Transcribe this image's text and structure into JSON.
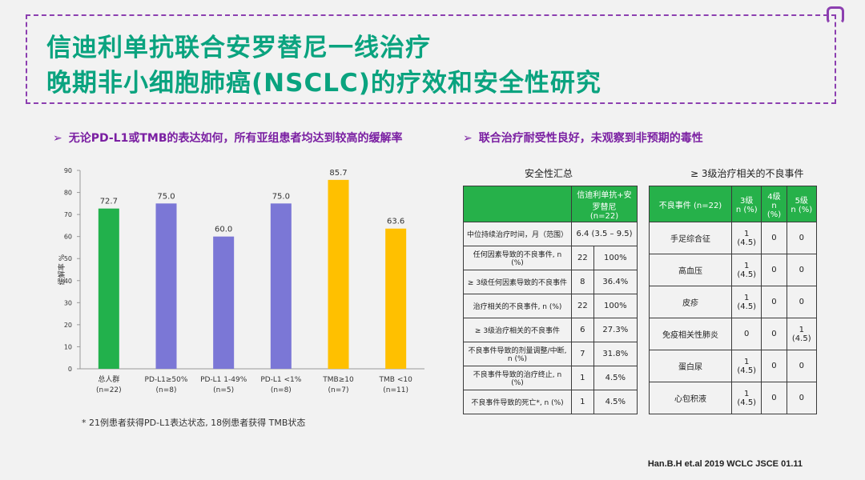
{
  "header": {
    "title_line1": "信迪利单抗联合安罗替尼一线治疗",
    "title_line2": "晚期非小细胞肺癌(NSCLC)的疗效和安全性研究"
  },
  "bullets": {
    "left": "无论PD-L1或TMB的表达如何，所有亚组患者均达到较高的缓解率",
    "right": "联合治疗耐受性良好，未观察到非预期的毒性",
    "marker": "➢"
  },
  "chart_data": {
    "type": "bar",
    "ylabel": "缓解率 %",
    "ylim": [
      0,
      90
    ],
    "yticks": [
      0,
      10,
      20,
      30,
      40,
      50,
      60,
      70,
      80,
      90
    ],
    "categories": [
      [
        "总人群",
        "(n=22)"
      ],
      [
        "PD-L1≥50%",
        "(n=8)"
      ],
      [
        "PD-L1 1-49%",
        "(n=5)"
      ],
      [
        "PD-L1 <1%",
        "(n=8)"
      ],
      [
        "TMB≥10",
        "(n=7)"
      ],
      [
        "TMB <10",
        "(n=11)"
      ]
    ],
    "values": [
      72.7,
      75.0,
      60.0,
      75.0,
      85.7,
      63.6
    ],
    "value_labels": [
      "72.7",
      "75.0",
      "60.0",
      "75.0",
      "85.7",
      "63.6"
    ],
    "colors": [
      "#22b14c",
      "#7b77d6",
      "#7b77d6",
      "#7b77d6",
      "#ffc000",
      "#ffc000"
    ],
    "grid": false
  },
  "footnote": "* 21例患者获得PD-L1表达状态, 18例患者获得 TMB状态",
  "safety_table": {
    "caption": "安全性汇总",
    "header": [
      "",
      "信迪利单抗+安罗替尼\n(n=22)"
    ],
    "rows": [
      [
        "中位持续治疗时间，月（范围）",
        "6.4 (3.5 – 9.5)",
        null
      ],
      [
        "任何因素导致的不良事件, n (%)",
        "22",
        "100%"
      ],
      [
        "≥ 3级任何因素导致的不良事件",
        "8",
        "36.4%"
      ],
      [
        "治疗相关的不良事件, n (%)",
        "22",
        "100%"
      ],
      [
        "≥ 3级治疗相关的不良事件",
        "6",
        "27.3%"
      ],
      [
        "不良事件导致的剂量调整/中断, n (%)",
        "7",
        "31.8%"
      ],
      [
        "不良事件导致的治疗终止, n (%)",
        "1",
        "4.5%"
      ],
      [
        "不良事件导致的死亡*, n (%)",
        "1",
        "4.5%"
      ]
    ]
  },
  "ae_table": {
    "caption": "≥ 3级治疗相关的不良事件",
    "header": [
      "不良事件 (n=22)",
      "3级\nn (%)",
      "4级\nn (%)",
      "5级\nn (%)"
    ],
    "rows": [
      [
        "手足综合征",
        "1 (4.5)",
        "0",
        "0"
      ],
      [
        "高血压",
        "1 (4.5)",
        "0",
        "0"
      ],
      [
        "皮疹",
        "1 (4.5)",
        "0",
        "0"
      ],
      [
        "免疫相关性肺炎",
        "0",
        "0",
        "1 (4.5)"
      ],
      [
        "蛋白尿",
        "1 (4.5)",
        "0",
        "0"
      ],
      [
        "心包积液",
        "1 (4.5)",
        "0",
        "0"
      ]
    ]
  },
  "citation": "Han.B.H et.al 2019 WCLC JSCE 01.11",
  "colors": {
    "title": "#0aa37f",
    "bullet": "#7a1fa2",
    "frame": "#8c3fb0",
    "table_header": "#26b14a"
  }
}
